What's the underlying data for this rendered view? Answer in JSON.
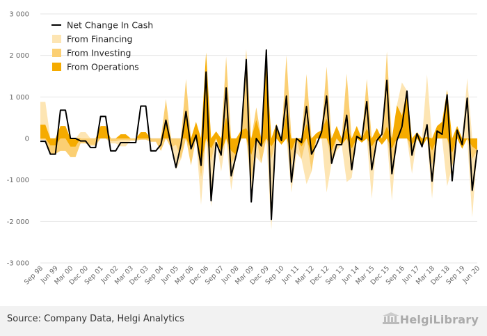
{
  "source": "Source: Company Data, Helgi Analytics",
  "brand": "HelgiLibrary",
  "colors": {
    "financing": "#fde5b3",
    "investing": "#fbcf73",
    "operations": "#f5ab00",
    "net": "#000000",
    "grid": "#e6e6e6"
  },
  "chart_data": {
    "type": "area",
    "stacking": "diverging",
    "legend_position": "top-left",
    "grid": true,
    "ylim": [
      -3000,
      3000
    ],
    "y_ticks": [
      -3000,
      -2000,
      -1000,
      0,
      1000,
      2000,
      3000
    ],
    "y_tick_labels": [
      "-3 000",
      "-2 000",
      "-1 000",
      "0",
      "1 000",
      "2 000",
      "3 000"
    ],
    "x_tick_labels": [
      "Sep 98",
      "Jun 99",
      "Mar 00",
      "Dec 00",
      "Sep 01",
      "Jun 02",
      "Mar 03",
      "Dec 03",
      "Sep 04",
      "Jun 05",
      "Mar 06",
      "Dec 06",
      "Sep 07",
      "Jun 08",
      "Mar 09",
      "Dec 09",
      "Sep 10",
      "Jun 11",
      "Mar 12",
      "Dec 12",
      "Sep 13",
      "Jun 14",
      "Mar 15",
      "Dec 15",
      "Sep 16",
      "Jun 17",
      "Mar 18",
      "Dec 18",
      "Sep 19",
      "Jun 20"
    ],
    "x": [
      "Sep 98",
      "Dec 98",
      "Mar 99",
      "Jun 99",
      "Sep 99",
      "Dec 99",
      "Mar 00",
      "Jun 00",
      "Sep 00",
      "Dec 00",
      "Mar 01",
      "Jun 01",
      "Sep 01",
      "Dec 01",
      "Mar 02",
      "Jun 02",
      "Sep 02",
      "Dec 02",
      "Mar 03",
      "Jun 03",
      "Sep 03",
      "Dec 03",
      "Mar 04",
      "Jun 04",
      "Sep 04",
      "Dec 04",
      "Mar 05",
      "Jun 05",
      "Sep 05",
      "Dec 05",
      "Mar 06",
      "Jun 06",
      "Sep 06",
      "Dec 06",
      "Mar 07",
      "Jun 07",
      "Sep 07",
      "Dec 07",
      "Mar 08",
      "Jun 08",
      "Sep 08",
      "Dec 08",
      "Mar 09",
      "Jun 09",
      "Sep 09",
      "Dec 09",
      "Mar 10",
      "Jun 10",
      "Sep 10",
      "Dec 10",
      "Mar 11",
      "Jun 11",
      "Sep 11",
      "Dec 11",
      "Mar 12",
      "Jun 12",
      "Sep 12",
      "Dec 12",
      "Mar 13",
      "Jun 13",
      "Sep 13",
      "Dec 13",
      "Mar 14",
      "Jun 14",
      "Sep 14",
      "Dec 14",
      "Mar 15",
      "Jun 15",
      "Sep 15",
      "Dec 15",
      "Mar 16",
      "Jun 16",
      "Sep 16",
      "Dec 16",
      "Mar 17",
      "Jun 17",
      "Sep 17",
      "Dec 17",
      "Mar 18",
      "Jun 18",
      "Sep 18",
      "Dec 18",
      "Mar 19",
      "Jun 19",
      "Sep 19",
      "Dec 19",
      "Mar 20",
      "Jun 20"
    ],
    "series": [
      {
        "name": "Net Change In Cash",
        "kind": "line",
        "values": [
          -70,
          -70,
          -380,
          -380,
          680,
          680,
          0,
          0,
          -60,
          -60,
          -220,
          -220,
          530,
          530,
          -300,
          -300,
          -100,
          -100,
          -100,
          -100,
          780,
          780,
          -300,
          -300,
          -150,
          440,
          -150,
          -700,
          -150,
          650,
          -250,
          80,
          -650,
          1600,
          -1500,
          -100,
          -400,
          1220,
          -900,
          -400,
          120,
          1900,
          -1530,
          0,
          -180,
          2130,
          -1950,
          300,
          -50,
          1020,
          -1050,
          0,
          -100,
          770,
          -380,
          -150,
          150,
          1020,
          -600,
          -150,
          -150,
          560,
          -750,
          50,
          -30,
          890,
          -750,
          -50,
          100,
          1400,
          -850,
          -50,
          280,
          1140,
          -400,
          120,
          -200,
          330,
          -1030,
          180,
          100,
          1050,
          -1020,
          200,
          -150,
          970,
          -1250,
          -280
        ]
      },
      {
        "name": "From Financing",
        "kind": "area",
        "values": [
          550,
          550,
          0,
          0,
          0,
          0,
          0,
          0,
          150,
          150,
          -30,
          -30,
          0,
          0,
          -50,
          -50,
          -150,
          -150,
          0,
          0,
          0,
          0,
          0,
          0,
          0,
          0,
          0,
          -600,
          0,
          0,
          0,
          0,
          -650,
          0,
          -1100,
          0,
          -450,
          0,
          -650,
          0,
          0,
          0,
          -300,
          -450,
          0,
          0,
          -1700,
          0,
          0,
          0,
          -650,
          -350,
          0,
          -1100,
          0,
          0,
          0,
          -1300,
          0,
          -300,
          0,
          -1050,
          -300,
          0,
          0,
          0,
          -900,
          0,
          0,
          0,
          -850,
          0,
          800,
          0,
          -400,
          0,
          0,
          1500,
          -800,
          0,
          0,
          -1150,
          0,
          0,
          0,
          1450,
          -1400,
          0
        ]
      },
      {
        "name": "From Investing",
        "kind": "area",
        "values": [
          -30,
          -30,
          -200,
          -200,
          -300,
          -300,
          -250,
          -250,
          -120,
          -120,
          -150,
          -150,
          0,
          0,
          -70,
          -70,
          -40,
          -40,
          -50,
          -50,
          -30,
          -30,
          -80,
          -80,
          -300,
          500,
          -220,
          -150,
          -500,
          780,
          -400,
          0,
          -300,
          0,
          -300,
          0,
          0,
          1450,
          -300,
          0,
          0,
          1900,
          -600,
          300,
          -400,
          0,
          -300,
          0,
          0,
          1400,
          -350,
          0,
          -300,
          1200,
          -400,
          0,
          0,
          1250,
          -300,
          0,
          0,
          1300,
          -400,
          0,
          0,
          1200,
          -350,
          0,
          0,
          1800,
          -400,
          0,
          0,
          0,
          -300,
          0,
          0,
          0,
          -350,
          0,
          0,
          0,
          -350,
          0,
          0,
          0,
          -300,
          0
        ]
      },
      {
        "name": "From Operations",
        "kind": "area",
        "values": [
          330,
          330,
          -170,
          -170,
          300,
          300,
          -200,
          -200,
          0,
          0,
          0,
          0,
          300,
          300,
          0,
          0,
          100,
          100,
          0,
          0,
          150,
          150,
          0,
          0,
          0,
          450,
          0,
          0,
          0,
          650,
          -250,
          400,
          -650,
          2070,
          -250,
          170,
          -350,
          520,
          -300,
          -400,
          200,
          250,
          -400,
          450,
          -200,
          1900,
          -200,
          350,
          -150,
          600,
          -300,
          0,
          -200,
          350,
          -400,
          130,
          200,
          480,
          -300,
          300,
          -150,
          260,
          -250,
          300,
          -100,
          230,
          -200,
          250,
          -150,
          290,
          -250,
          800,
          550,
          1150,
          -150,
          150,
          -200,
          40,
          -300,
          300,
          400,
          1170,
          -350,
          300,
          -250,
          0,
          -200,
          -280
        ]
      }
    ]
  }
}
